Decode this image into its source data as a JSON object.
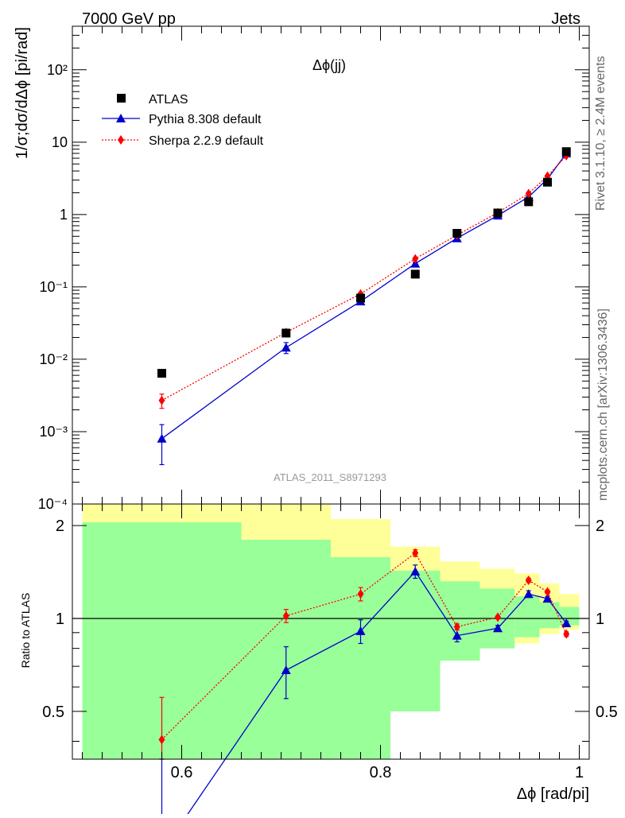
{
  "header": {
    "left": "7000 GeV pp",
    "right": "Jets"
  },
  "side_text": {
    "top": "Rivet 3.1.10, ≥ 2.4M events",
    "bottom": "mcplots.cern.ch [arXiv:1306.3436]"
  },
  "colors": {
    "atlas": "#000000",
    "pythia": "#0000cc",
    "sherpa": "#ff0000",
    "band_outer": "#ffff99",
    "band_inner": "#99ff99"
  },
  "chart_data": [
    {
      "type": "line",
      "title": "Δϕ(jj)",
      "ylabel": "1/σ;dσ/dΔϕ [pi/rad]",
      "xlim": [
        0.49,
        1.01
      ],
      "ylim": [
        0.0001,
        400
      ],
      "yscale": "log",
      "ytick_labels": [
        "10⁻⁴",
        "10⁻³",
        "10⁻²",
        "10⁻¹",
        "1",
        "10",
        "10²"
      ],
      "watermark": "ATLAS_2011_S8971293",
      "legend_position": "top-left",
      "series": [
        {
          "name": "ATLAS",
          "marker": "square",
          "x": [
            0.58,
            0.705,
            0.78,
            0.835,
            0.877,
            0.918,
            0.949,
            0.968,
            0.987
          ],
          "y": [
            0.0064,
            0.023,
            0.07,
            0.15,
            0.55,
            1.05,
            1.5,
            2.8,
            7.4
          ]
        },
        {
          "name": "Pythia 8.308 default",
          "marker": "triangle",
          "linestyle": "solid",
          "x": [
            0.58,
            0.705,
            0.78,
            0.835,
            0.877,
            0.918,
            0.949,
            0.968,
            0.987
          ],
          "y": [
            0.0008,
            0.0145,
            0.063,
            0.21,
            0.47,
            0.97,
            1.75,
            3.1,
            7.0
          ],
          "yerr": [
            0.00045,
            0.0025,
            0.006,
            0.01,
            0.02,
            0.03,
            0.04,
            0.06,
            0.12
          ]
        },
        {
          "name": "Sherpa 2.2.9 default",
          "marker": "diamond",
          "linestyle": "dotted",
          "x": [
            0.58,
            0.705,
            0.78,
            0.835,
            0.877,
            0.918,
            0.949,
            0.968,
            0.987
          ],
          "y": [
            0.0027,
            0.0235,
            0.08,
            0.245,
            0.52,
            1.06,
            1.95,
            3.4,
            6.5
          ],
          "yerr": [
            0.0006,
            0.0015,
            0.004,
            0.008,
            0.012,
            0.02,
            0.04,
            0.06,
            0.1
          ]
        }
      ]
    },
    {
      "type": "line",
      "ylabel": "Ratio to ATLAS",
      "xlabel": "Δϕ [rad/pi]",
      "xlim": [
        0.49,
        1.01
      ],
      "ylim": [
        0.35,
        2.35
      ],
      "yscale": "log",
      "xticks": [
        0.6,
        0.8,
        1
      ],
      "xtick_labels": [
        "0.6",
        "0.8",
        "1"
      ],
      "yticks": [
        0.5,
        1,
        2
      ],
      "ytick_labels": [
        "0.5",
        "1",
        "2"
      ],
      "reference_line": 1,
      "bands": {
        "edges": [
          0.5,
          0.66,
          0.75,
          0.81,
          0.86,
          0.9,
          0.935,
          0.96,
          0.98,
          1.0
        ],
        "outer_lo": [
          0.3,
          0.3,
          0.53,
          0.68,
          0.84,
          0.86,
          0.83,
          0.89,
          0.92
        ],
        "outer_hi": [
          2.4,
          2.4,
          2.1,
          1.71,
          1.53,
          1.45,
          1.4,
          1.3,
          1.2
        ],
        "inner_lo": [
          0.3,
          0.3,
          0.3,
          0.5,
          0.73,
          0.8,
          0.87,
          0.93,
          0.95
        ],
        "inner_hi": [
          2.05,
          1.8,
          1.58,
          1.43,
          1.32,
          1.25,
          1.18,
          1.13,
          1.09
        ]
      },
      "series": [
        {
          "name": "Pythia 8.308 default",
          "x": [
            0.58,
            0.705,
            0.78,
            0.835,
            0.877,
            0.918,
            0.949,
            0.968,
            0.987
          ],
          "y": [
            0.125,
            0.68,
            0.91,
            1.42,
            0.88,
            0.93,
            1.2,
            1.16,
            0.965
          ],
          "yerr": [
            0.03,
            0.13,
            0.08,
            0.07,
            0.04,
            0.02,
            0.03,
            0.02,
            0.015
          ]
        },
        {
          "name": "Sherpa 2.2.9 default",
          "x": [
            0.58,
            0.705,
            0.78,
            0.835,
            0.877,
            0.918,
            0.949,
            0.968,
            0.987
          ],
          "y": [
            0.405,
            1.02,
            1.2,
            1.63,
            0.94,
            1.01,
            1.33,
            1.22,
            0.89
          ],
          "yerr": [
            0.15,
            0.05,
            0.06,
            0.04,
            0.02,
            0.01,
            0.02,
            0.015,
            0.015
          ]
        }
      ]
    }
  ]
}
